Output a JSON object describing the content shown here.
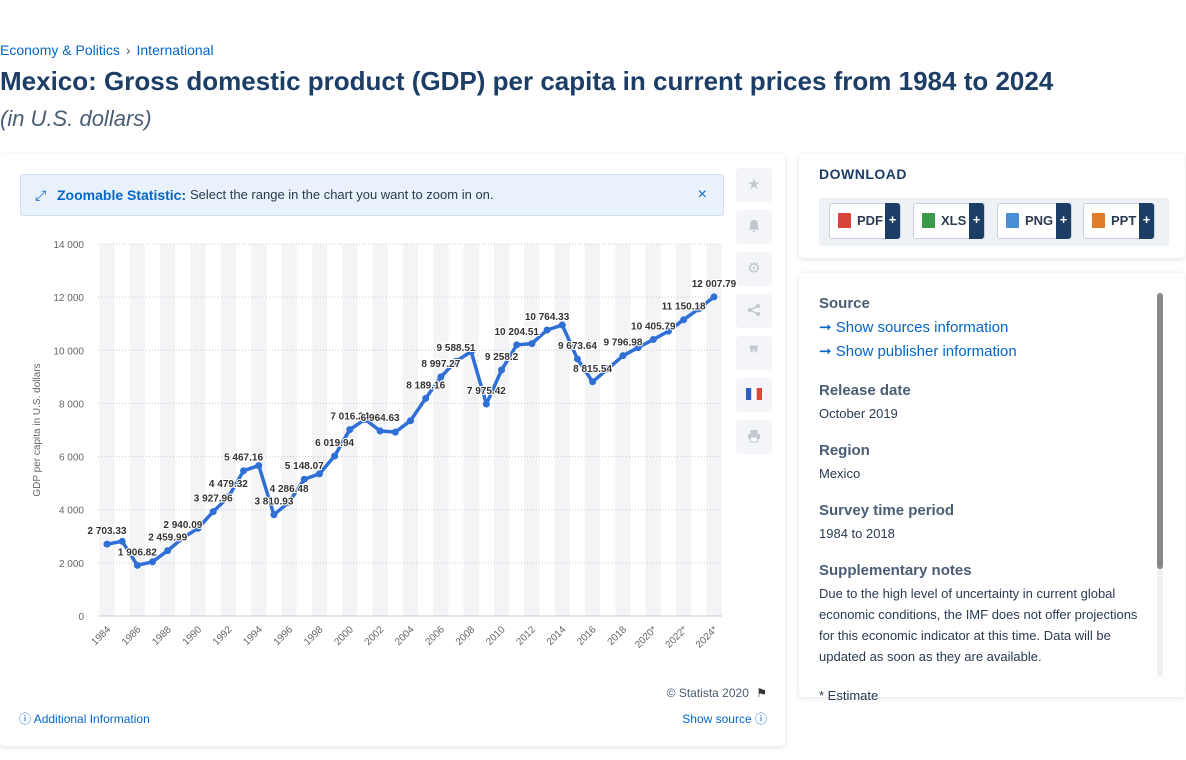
{
  "breadcrumb": {
    "item1": "Economy & Politics",
    "sep": "›",
    "item2": "International"
  },
  "page_title": "Mexico: Gross domestic product (GDP) per capita in current prices from 1984 to 2024",
  "page_subtitle": "(in U.S. dollars)",
  "zoom_bar": {
    "bold": "Zoomable Statistic:",
    "text": "Select the range in the chart you want to zoom in on.",
    "close": "×"
  },
  "tools": [
    "star-icon",
    "bell-icon",
    "gear-icon",
    "share-icon",
    "quote-icon",
    "flag-france-icon",
    "print-icon"
  ],
  "chart_data": {
    "type": "line",
    "ylabel": "GDP per capita in U.S. dollars",
    "ylim": [
      0,
      14000
    ],
    "yticks": [
      "0",
      "2 000",
      "4 000",
      "6 000",
      "8 000",
      "10 000",
      "12 000",
      "14 000"
    ],
    "ytick_values": [
      0,
      2000,
      4000,
      6000,
      8000,
      10000,
      12000,
      14000
    ],
    "xtick_labels": [
      "1984",
      "1986",
      "1988",
      "1990",
      "1992",
      "1994",
      "1996",
      "1998",
      "2000",
      "2002",
      "2004",
      "2006",
      "2008",
      "2010",
      "2012",
      "2014",
      "2016",
      "2018",
      "2020*",
      "2022*",
      "2024*"
    ],
    "grid": true,
    "line_color": "#2f6fd6",
    "x": [
      "1984",
      "1985",
      "1986",
      "1987",
      "1988",
      "1989",
      "1990",
      "1991",
      "1992",
      "1993",
      "1994",
      "1995",
      "1996",
      "1997",
      "1998",
      "1999",
      "2000",
      "2001",
      "2002",
      "2003",
      "2004",
      "2005",
      "2006",
      "2007",
      "2008",
      "2009",
      "2010",
      "2011",
      "2012",
      "2013",
      "2014",
      "2015",
      "2016",
      "2017",
      "2018",
      "2019",
      "2020*",
      "2021*",
      "2022*",
      "2023*",
      "2024*"
    ],
    "values": [
      2703.33,
      2810,
      1906.82,
      2040,
      2459.99,
      2940.09,
      3300,
      3927.96,
      4479.32,
      5467.16,
      5660,
      3810.93,
      4286.48,
      5148.07,
      5350,
      6019.94,
      7016.24,
      7400,
      6964.63,
      6920,
      7350,
      8189.16,
      8997.27,
      9588.51,
      9950,
      7975.42,
      9258.2,
      10204.51,
      10250,
      10764.33,
      10950,
      9673.64,
      8815.54,
      9300,
      9796.98,
      10100,
      10405.79,
      10720,
      11150.18,
      11560,
      12007.79
    ],
    "labels": [
      "2 703.33",
      "",
      "1 906.82",
      "",
      "2 459.99",
      "2 940.09",
      "",
      "3 927.96",
      "4 479.32",
      "5 467.16",
      "",
      "3 810.93",
      "4 286.48",
      "5 148.07",
      "",
      "6 019.94",
      "7 016.24",
      "",
      "6 964.63",
      "",
      "",
      "8 189.16",
      "8 997.27",
      "9 588.51",
      "",
      "7 975.42",
      "9 258.2",
      "10 204.51",
      "",
      "10 764.33",
      "",
      "9 673.64",
      "8 815.54",
      "",
      "9 796.98",
      "",
      "10 405.79",
      "",
      "11 150.18",
      "",
      "12 007.79"
    ]
  },
  "copyright": "© Statista 2020",
  "additional_info": "Additional Information",
  "show_source": "Show source",
  "download": {
    "title": "DOWNLOAD",
    "buttons": [
      {
        "label": "PDF",
        "color": "#d9453b"
      },
      {
        "label": "XLS",
        "color": "#3a9a4a"
      },
      {
        "label": "PNG",
        "color": "#4a8fd6"
      },
      {
        "label": "PPT",
        "color": "#e07b28"
      }
    ],
    "plus": "+"
  },
  "info": {
    "source_heading": "Source",
    "show_sources": "Show sources information",
    "show_publisher": "Show publisher information",
    "release_heading": "Release date",
    "release_value": "October 2019",
    "region_heading": "Region",
    "region_value": "Mexico",
    "survey_heading": "Survey time period",
    "survey_value": "1984 to 2018",
    "notes_heading": "Supplementary notes",
    "notes_value": "Due to the high level of uncertainty in current global economic conditions, the IMF does not offer projections for this economic indicator at this time. Data will be updated as soon as they are available.",
    "footnote": "* Estimate"
  }
}
